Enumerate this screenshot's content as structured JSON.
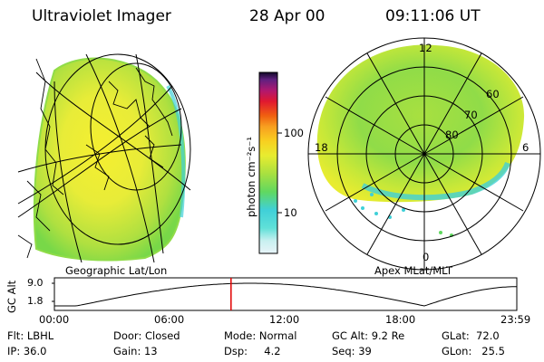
{
  "header": {
    "instrument": "Ultraviolet Imager",
    "date": "28 Apr 00",
    "time": "09:11:06 UT"
  },
  "left_panel": {
    "caption": "Geographic Lat/Lon"
  },
  "right_panel": {
    "caption": "Apex MLat/MLT",
    "mlt_labels": [
      "12",
      "18",
      "6",
      "0"
    ],
    "lat_labels": [
      "60",
      "70",
      "80"
    ]
  },
  "colorbar": {
    "unit_label": "photon cm⁻²s⁻¹",
    "ticks": [
      "100",
      "10"
    ],
    "scale": "log"
  },
  "altitude_plot": {
    "ylabel": "GC Alt",
    "y_ticks": [
      "9.0",
      "1.8"
    ],
    "x_ticks": [
      "00:00",
      "06:00",
      "12:00",
      "18:00",
      "23:59"
    ],
    "current_time_fraction": 0.382
  },
  "status": {
    "flt": "Flt: LBHL",
    "ip": "IP: 36.0",
    "door": "Door: Closed",
    "gain": "Gain: 13",
    "mode": "Mode: Normal",
    "dsp": "Dsp:     4.2",
    "gc_alt": "GC Alt: 9.2 Re",
    "seq": "Seq: 39",
    "glat": "GLat:  72.0",
    "glon": "GLon:   25.5"
  },
  "colors": {
    "aurora_bright": "#f0ea30",
    "aurora_mid": "#a8e040",
    "aurora_low": "#30d8c8",
    "marker": "#e00000"
  }
}
